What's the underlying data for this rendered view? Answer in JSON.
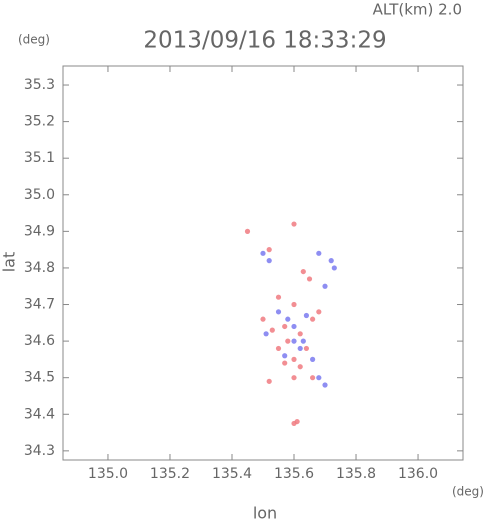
{
  "chart_data": {
    "type": "scatter",
    "title": "2013/09/16 18:33:29",
    "subtitle": "ALT(km) 2.0",
    "y_unit": "(deg)",
    "x_unit": "(deg)",
    "x_label": "lon",
    "y_label": "lat",
    "xlim": [
      134.855,
      136.145
    ],
    "ylim": [
      34.275,
      35.352
    ],
    "xticks": [
      {
        "value": 135,
        "label": "135.0"
      },
      135.2,
      135.4,
      135.6,
      135.8,
      {
        "value": 136,
        "label": "136.0"
      }
    ],
    "yticks": [
      34.3,
      34.4,
      34.5,
      34.6,
      34.7,
      34.8,
      34.9,
      {
        "value": 35,
        "label": "35.0"
      },
      35.1,
      35.2,
      35.3
    ],
    "series": [
      {
        "color": "#f07a80",
        "x": [
          135.6,
          135.63,
          135.65,
          135.52,
          135.55,
          135.5,
          135.57,
          135.6,
          135.62,
          135.58,
          135.66,
          135.64,
          135.6,
          135.55,
          135.62,
          135.6,
          135.52,
          135.61,
          135.6,
          135.45,
          135.68,
          135.57,
          135.53,
          135.66
        ],
        "y": [
          34.92,
          34.79,
          34.77,
          34.85,
          34.72,
          34.66,
          34.64,
          34.7,
          34.62,
          34.6,
          34.66,
          34.58,
          34.55,
          34.58,
          34.53,
          34.5,
          34.49,
          34.38,
          34.375,
          34.9,
          34.68,
          34.54,
          34.63,
          34.5
        ]
      },
      {
        "color": "#7a7af0",
        "x": [
          135.68,
          135.7,
          135.72,
          135.5,
          135.52,
          135.55,
          135.6,
          135.58,
          135.63,
          135.57,
          135.66,
          135.68,
          135.7,
          135.51,
          135.64,
          135.62,
          135.73,
          135.6
        ],
        "y": [
          34.84,
          34.75,
          34.82,
          34.84,
          34.82,
          34.68,
          34.64,
          34.66,
          34.6,
          34.56,
          34.55,
          34.5,
          34.48,
          34.62,
          34.67,
          34.58,
          34.8,
          34.6
        ]
      }
    ]
  }
}
